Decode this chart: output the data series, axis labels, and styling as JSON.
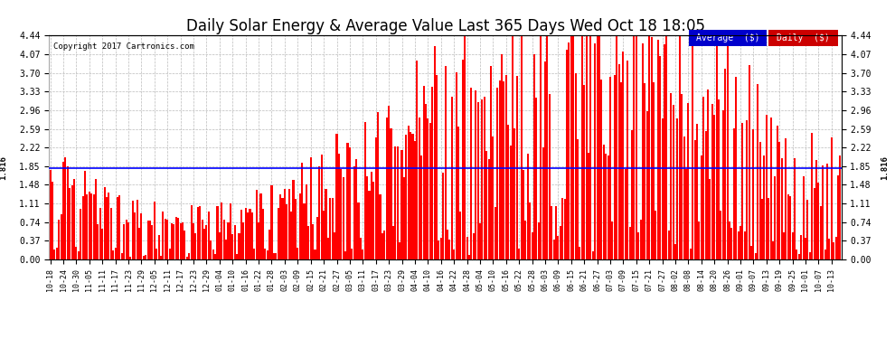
{
  "title": "Daily Solar Energy & Average Value Last 365 Days Wed Oct 18 18:05",
  "title_fontsize": 12,
  "copyright_text": "Copyright 2017 Cartronics.com",
  "bar_color": "#ff0000",
  "avg_line_color": "#0000ff",
  "avg_value": 1.816,
  "avg_label": "Average  ($)",
  "daily_label": "Daily  ($)",
  "avg_legend_bg": "#0000cc",
  "daily_legend_bg": "#cc0000",
  "legend_text_color": "#ffffff",
  "background_color": "#ffffff",
  "plot_bg_color": "#ffffff",
  "grid_color": "#bbbbbb",
  "ylim": [
    0,
    4.44
  ],
  "yticks": [
    0.0,
    0.37,
    0.74,
    1.11,
    1.48,
    1.85,
    2.22,
    2.59,
    2.96,
    3.33,
    3.7,
    4.07,
    4.44
  ],
  "avg_label_value": "1.816",
  "num_bars": 365,
  "x_tick_labels": [
    "10-18",
    "10-24",
    "10-30",
    "11-05",
    "11-11",
    "11-17",
    "11-23",
    "11-29",
    "12-05",
    "12-11",
    "12-17",
    "12-23",
    "12-29",
    "01-04",
    "01-10",
    "01-16",
    "01-22",
    "01-28",
    "02-03",
    "02-09",
    "02-15",
    "02-21",
    "02-27",
    "03-05",
    "03-11",
    "03-17",
    "03-23",
    "03-29",
    "04-04",
    "04-10",
    "04-16",
    "04-22",
    "04-28",
    "05-04",
    "05-10",
    "05-16",
    "05-22",
    "05-28",
    "06-03",
    "06-09",
    "06-15",
    "06-21",
    "06-27",
    "07-03",
    "07-09",
    "07-15",
    "07-21",
    "07-27",
    "08-02",
    "08-08",
    "08-14",
    "08-20",
    "08-26",
    "09-01",
    "09-07",
    "09-13",
    "09-19",
    "09-25",
    "10-01",
    "10-07",
    "10-13"
  ],
  "x_tick_positions": [
    0,
    6,
    12,
    18,
    24,
    30,
    36,
    42,
    48,
    54,
    60,
    66,
    72,
    78,
    84,
    90,
    96,
    102,
    108,
    114,
    120,
    126,
    132,
    138,
    144,
    150,
    156,
    162,
    168,
    174,
    180,
    186,
    192,
    198,
    204,
    210,
    216,
    222,
    228,
    234,
    240,
    246,
    252,
    258,
    264,
    270,
    276,
    282,
    288,
    294,
    300,
    306,
    312,
    318,
    324,
    330,
    336,
    342,
    348,
    354,
    360
  ]
}
